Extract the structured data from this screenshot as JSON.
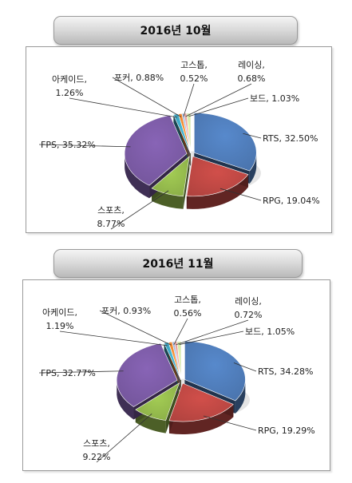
{
  "chart_data": [
    {
      "type": "pie",
      "title": "2016년 10월",
      "slices": [
        {
          "name": "RTS",
          "value": 32.5,
          "label": "RTS, 32.50%",
          "color": "#4a74ad"
        },
        {
          "name": "RPG",
          "value": 19.04,
          "label": "RPG, 19.04%",
          "color": "#b1433f"
        },
        {
          "name": "스포츠",
          "value": 8.77,
          "label_lines": [
            "스포츠,",
            "8.77%"
          ],
          "color": "#8aad47"
        },
        {
          "name": "FPS",
          "value": 35.32,
          "label": "FPS, 35.32%",
          "color": "#73559a"
        },
        {
          "name": "아케이드",
          "value": 1.26,
          "label_lines": [
            "아케이드,",
            "1.26%"
          ],
          "color": "#3a9bb5"
        },
        {
          "name": "포커",
          "value": 0.88,
          "label": "포커, 0.88%",
          "color": "#e07f2e"
        },
        {
          "name": "고스톱",
          "value": 0.52,
          "label_lines": [
            "고스톱,",
            "0.52%"
          ],
          "color": "#92a9cf"
        },
        {
          "name": "레이싱",
          "value": 0.68,
          "label_lines": [
            "레이싱,",
            "0.68%"
          ],
          "color": "#d39492"
        },
        {
          "name": "보드",
          "value": 1.03,
          "label": "보드, 1.03%",
          "color": "#c3d59c"
        }
      ]
    },
    {
      "type": "pie",
      "title": "2016년 11월",
      "slices": [
        {
          "name": "RTS",
          "value": 34.28,
          "label": "RTS, 34.28%",
          "color": "#4a74ad"
        },
        {
          "name": "RPG",
          "value": 19.29,
          "label": "RPG, 19.29%",
          "color": "#b1433f"
        },
        {
          "name": "스포츠",
          "value": 9.22,
          "label_lines": [
            "스포츠,",
            "9.22%"
          ],
          "color": "#8aad47"
        },
        {
          "name": "FPS",
          "value": 32.77,
          "label": "FPS, 32.77%",
          "color": "#73559a"
        },
        {
          "name": "아케이드",
          "value": 1.19,
          "label_lines": [
            "아케이드,",
            "1.19%"
          ],
          "color": "#3a9bb5"
        },
        {
          "name": "포커",
          "value": 0.93,
          "label": "포커, 0.93%",
          "color": "#e07f2e"
        },
        {
          "name": "고스톱",
          "value": 0.56,
          "label_lines": [
            "고스톱,",
            "0.56%"
          ],
          "color": "#92a9cf"
        },
        {
          "name": "레이싱",
          "value": 0.72,
          "label_lines": [
            "레이싱,",
            "0.72%"
          ],
          "color": "#d39492"
        },
        {
          "name": "보드",
          "value": 1.05,
          "label": "보드, 1.05%",
          "color": "#c3d59c"
        }
      ]
    }
  ]
}
